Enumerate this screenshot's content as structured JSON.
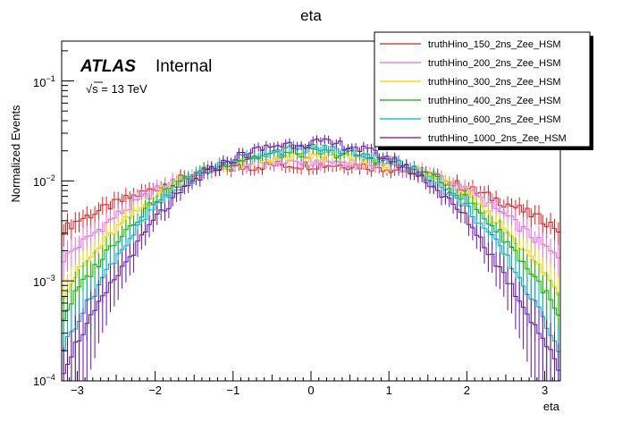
{
  "chart_data": {
    "type": "line",
    "style": "step-histogram",
    "title": "eta",
    "xlabel": "eta",
    "ylabel": "Normalized Events",
    "xlim": [
      -3.2,
      3.2
    ],
    "ylim": [
      0.0001,
      0.25
    ],
    "yscale": "log",
    "x_ticks": [
      -3,
      -2,
      -1,
      0,
      1,
      2,
      3
    ],
    "x_tick_labels": [
      "−3",
      "−2",
      "−1",
      "0",
      "1",
      "2",
      "3"
    ],
    "y_tick_labels": [
      {
        "value": 0.1,
        "base": "10",
        "exp": "−1"
      },
      {
        "value": 0.01,
        "base": "10",
        "exp": "−2"
      },
      {
        "value": 0.001,
        "base": "10",
        "exp": "−3"
      },
      {
        "value": 0.0001,
        "base": "10",
        "exp": "−4"
      }
    ],
    "annotations": {
      "atlas": "ATLAS",
      "status": "Internal",
      "energy_sqrt": "√",
      "energy": "s = 13 TeV"
    },
    "legend_position": "top-right",
    "series": [
      {
        "name": "truthHino_150_2ns_Zee_HSM",
        "color": "#e31a1c",
        "peak": 0.0145,
        "shape": [
          [
            0,
            0.0145
          ],
          [
            0.5,
            0.0145
          ],
          [
            1.0,
            0.0135
          ],
          [
            1.5,
            0.0115
          ],
          [
            2.0,
            0.0085
          ],
          [
            2.5,
            0.006
          ],
          [
            3.0,
            0.004
          ],
          [
            3.2,
            0.0032
          ]
        ]
      },
      {
        "name": "truthHino_200_2ns_Zee_HSM",
        "color": "#ee66dd",
        "peak": 0.0155,
        "shape": [
          [
            0,
            0.0155
          ],
          [
            0.5,
            0.0155
          ],
          [
            1.0,
            0.0145
          ],
          [
            1.5,
            0.012
          ],
          [
            2.0,
            0.008
          ],
          [
            2.5,
            0.0045
          ],
          [
            3.0,
            0.0022
          ],
          [
            3.2,
            0.0016
          ]
        ]
      },
      {
        "name": "truthHino_300_2ns_Zee_HSM",
        "color": "#f2d000",
        "peak": 0.0175,
        "shape": [
          [
            0,
            0.0175
          ],
          [
            0.5,
            0.017
          ],
          [
            1.0,
            0.015
          ],
          [
            1.5,
            0.0115
          ],
          [
            2.0,
            0.007
          ],
          [
            2.5,
            0.0033
          ],
          [
            3.0,
            0.0012
          ],
          [
            3.2,
            0.0007
          ]
        ]
      },
      {
        "name": "truthHino_400_2ns_Zee_HSM",
        "color": "#00b000",
        "peak": 0.0195,
        "shape": [
          [
            0,
            0.0195
          ],
          [
            0.5,
            0.0185
          ],
          [
            1.0,
            0.016
          ],
          [
            1.5,
            0.0115
          ],
          [
            2.0,
            0.0065
          ],
          [
            2.5,
            0.0026
          ],
          [
            3.0,
            0.0008
          ],
          [
            3.2,
            0.0004
          ]
        ]
      },
      {
        "name": "truthHino_600_2ns_Zee_HSM",
        "color": "#00aacc",
        "peak": 0.0215,
        "shape": [
          [
            0,
            0.0215
          ],
          [
            0.5,
            0.02
          ],
          [
            1.0,
            0.0165
          ],
          [
            1.5,
            0.011
          ],
          [
            2.0,
            0.0055
          ],
          [
            2.5,
            0.0018
          ],
          [
            3.0,
            0.0004
          ],
          [
            3.2,
            0.0002
          ]
        ]
      },
      {
        "name": "truthHino_1000_2ns_Zee_HSM",
        "color": "#6a0dad",
        "peak": 0.0245,
        "shape": [
          [
            0,
            0.0245
          ],
          [
            0.5,
            0.0225
          ],
          [
            1.0,
            0.017
          ],
          [
            1.5,
            0.01
          ],
          [
            2.0,
            0.0042
          ],
          [
            2.5,
            0.0011
          ],
          [
            3.0,
            0.00025
          ],
          [
            3.2,
            0.00012
          ]
        ]
      }
    ]
  }
}
